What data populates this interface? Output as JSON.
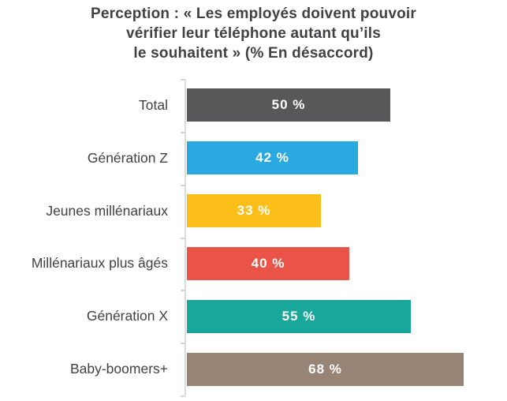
{
  "title": {
    "lines": [
      "Perception : « Les employés doivent pouvoir",
      "vérifier leur téléphone autant qu’ils",
      "le souhaitent » (% En désaccord)"
    ]
  },
  "chart_data": {
    "type": "bar",
    "orientation": "horizontal",
    "title": "Perception : « Les employés doivent pouvoir vérifier leur téléphone autant qu’ils le souhaitent » (% En désaccord)",
    "categories": [
      "Total",
      "Génération Z",
      "Jeunes millénariaux",
      "Millénariaux plus âgés",
      "Génération X",
      "Baby-boomers+"
    ],
    "values": [
      50,
      42,
      33,
      40,
      55,
      68
    ],
    "value_labels": [
      "50 %",
      "42 %",
      "33 %",
      "40 %",
      "55 %",
      "68 %"
    ],
    "bar_colors": [
      "#58585a",
      "#29a9e0",
      "#fcbe18",
      "#ea5348",
      "#19a79b",
      "#988474"
    ],
    "xlabel": "",
    "ylabel": "",
    "xlim": [
      0,
      78
    ],
    "grid": false,
    "legend": false,
    "axis_color": "#dcdcdc",
    "title_color": "#414042",
    "label_color": "#414042",
    "value_text_color": "#ffffff"
  }
}
